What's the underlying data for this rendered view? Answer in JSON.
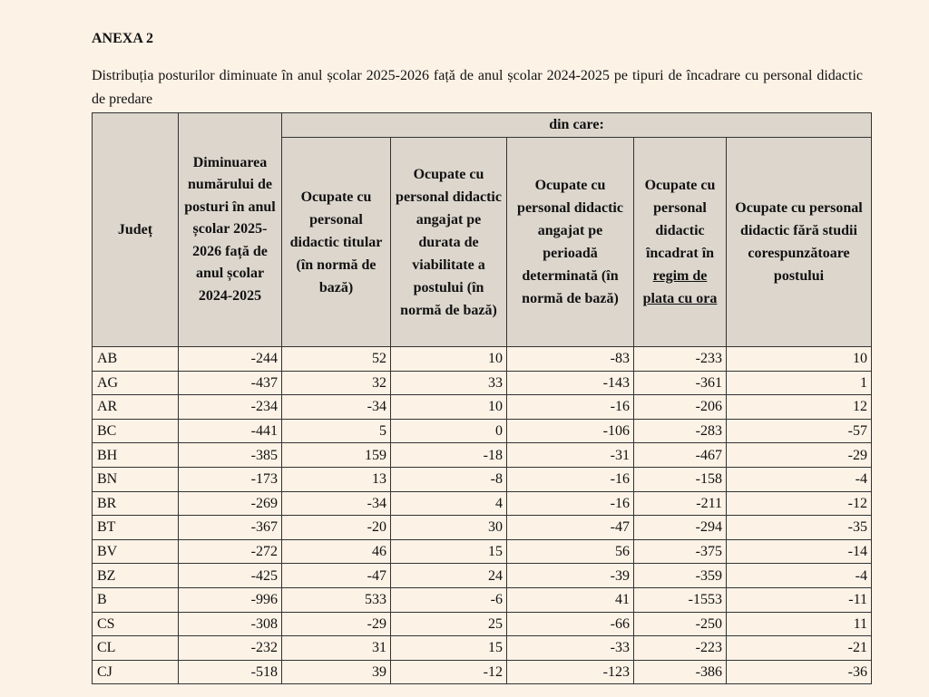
{
  "title": "ANEXA 2",
  "description": "Distribuția posturilor diminuate în anul școlar 2025-2026 față de anul școlar 2024-2025 pe tipuri de încadrare cu personal didactic de predare",
  "table": {
    "group_header": "din care:",
    "headers": {
      "judet": "Județ",
      "diminuare": "Diminuarea numărului de posturi în anul școlar 2025-2026 față de anul școlar 2024-2025",
      "titular": "Ocupate cu personal didactic titular (în normă de bază)",
      "viabilitate": "Ocupate cu personal didactic angajat pe durata de viabilitate a postului (în normă de bază)",
      "determinata": "Ocupate cu personal didactic angajat pe perioadă determinată (în normă de bază)",
      "plata_ora_prefix": "Ocupate cu personal didactic încadrat în",
      "plata_ora_underlined": "regim de plata cu ora",
      "fara_studii": "Ocupate cu personal didactic fără studii corespunzătoare postului"
    },
    "rows": [
      [
        "AB",
        "-244",
        "52",
        "10",
        "-83",
        "-233",
        "10"
      ],
      [
        "AG",
        "-437",
        "32",
        "33",
        "-143",
        "-361",
        "1"
      ],
      [
        "AR",
        "-234",
        "-34",
        "10",
        "-16",
        "-206",
        "12"
      ],
      [
        "BC",
        "-441",
        "5",
        "0",
        "-106",
        "-283",
        "-57"
      ],
      [
        "BH",
        "-385",
        "159",
        "-18",
        "-31",
        "-467",
        "-29"
      ],
      [
        "BN",
        "-173",
        "13",
        "-8",
        "-16",
        "-158",
        "-4"
      ],
      [
        "BR",
        "-269",
        "-34",
        "4",
        "-16",
        "-211",
        "-12"
      ],
      [
        "BT",
        "-367",
        "-20",
        "30",
        "-47",
        "-294",
        "-35"
      ],
      [
        "BV",
        "-272",
        "46",
        "15",
        "56",
        "-375",
        "-14"
      ],
      [
        "BZ",
        "-425",
        "-47",
        "24",
        "-39",
        "-359",
        "-4"
      ],
      [
        "B",
        "-996",
        "533",
        "-6",
        "41",
        "-1553",
        "-11"
      ],
      [
        "CS",
        "-308",
        "-29",
        "25",
        "-66",
        "-250",
        "11"
      ],
      [
        "CL",
        "-232",
        "31",
        "15",
        "-33",
        "-223",
        "-21"
      ],
      [
        "CJ",
        "-518",
        "39",
        "-12",
        "-123",
        "-386",
        "-36"
      ]
    ]
  }
}
